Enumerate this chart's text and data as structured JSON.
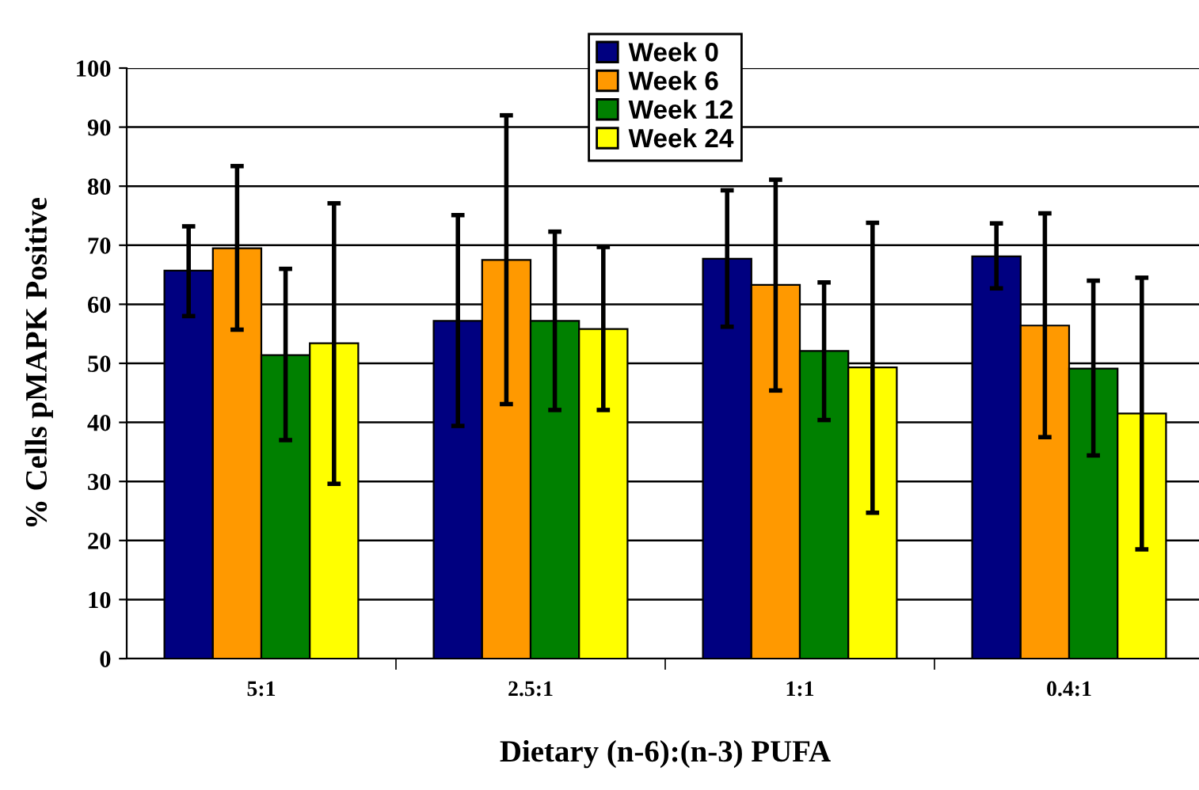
{
  "chart_data": {
    "type": "bar",
    "xlabel": "Dietary (n-6):(n-3) PUFA",
    "ylabel": "% Cells pMAPK Positive",
    "categories": [
      "5:1",
      "2.5:1",
      "1:1",
      "0.4:1"
    ],
    "series": [
      {
        "name": "Week 0",
        "color": "#000080",
        "values": [
          65.7,
          57.2,
          67.7,
          68.1
        ],
        "errors": [
          [
            58.0,
            73.2
          ],
          [
            39.4,
            75.1
          ],
          [
            56.2,
            79.3
          ],
          [
            62.7,
            73.7
          ]
        ]
      },
      {
        "name": "Week 6",
        "color": "#ff9900",
        "values": [
          69.5,
          67.5,
          63.3,
          56.4
        ],
        "errors": [
          [
            55.7,
            83.4
          ],
          [
            43.1,
            92.0
          ],
          [
            45.4,
            81.1
          ],
          [
            37.5,
            75.4
          ]
        ]
      },
      {
        "name": "Week 12",
        "color": "#008000",
        "values": [
          51.4,
          57.2,
          52.1,
          49.1
        ],
        "errors": [
          [
            37.0,
            66.0
          ],
          [
            42.1,
            72.3
          ],
          [
            40.4,
            63.7
          ],
          [
            34.4,
            64.0
          ]
        ]
      },
      {
        "name": "Week 24",
        "color": "#ffff00",
        "values": [
          53.4,
          55.8,
          49.3,
          41.5
        ],
        "errors": [
          [
            29.6,
            77.1
          ],
          [
            42.1,
            69.7
          ],
          [
            24.7,
            73.8
          ],
          [
            18.5,
            64.5
          ]
        ]
      }
    ],
    "ylim": [
      0,
      100
    ],
    "yticks": [
      0,
      10,
      20,
      30,
      40,
      50,
      60,
      70,
      80,
      90,
      100
    ],
    "grid": "y",
    "legend": "top"
  }
}
